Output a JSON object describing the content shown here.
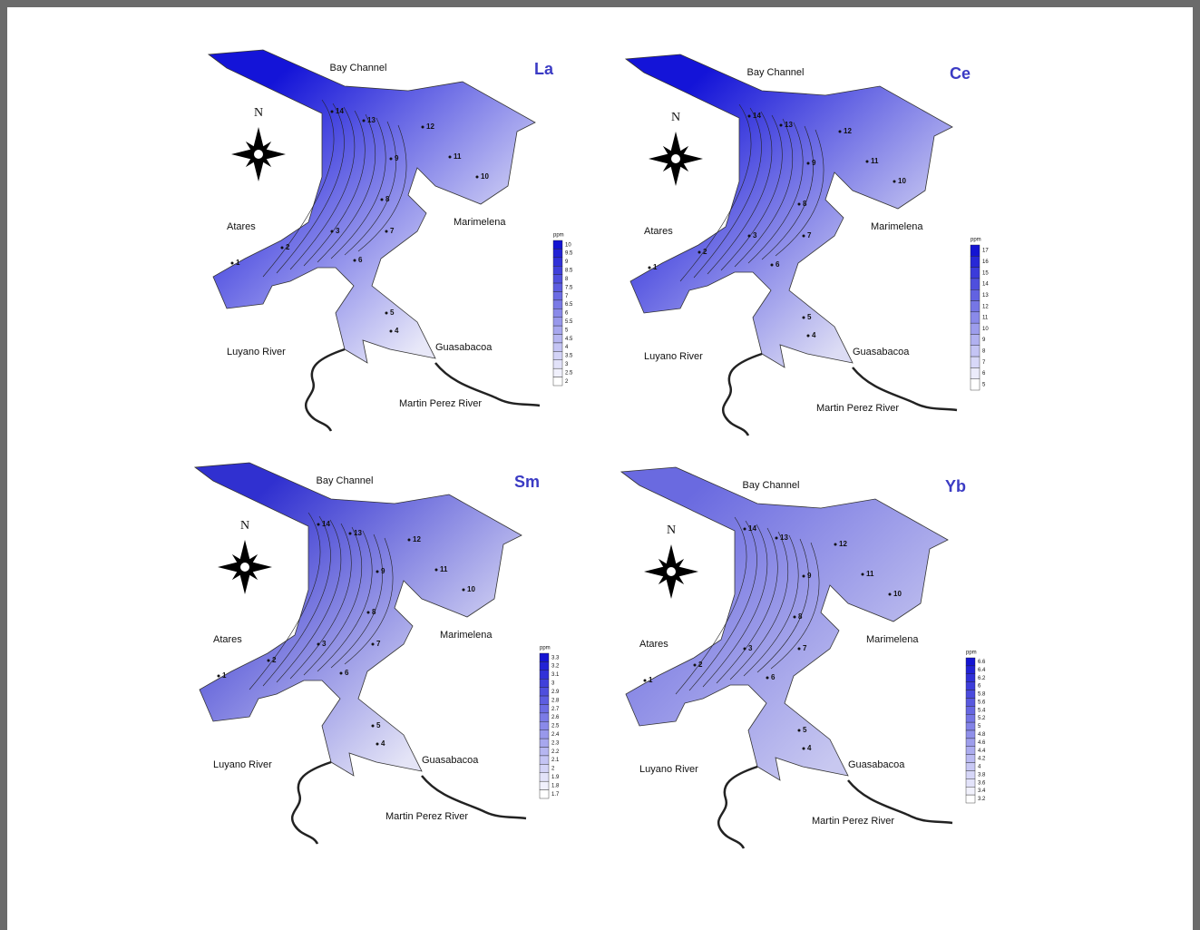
{
  "panels": [
    {
      "element": "La",
      "places": [
        "Bay Channel",
        "Atares",
        "Marimelena",
        "Guasabacoa",
        "Luyano River",
        "Martin Perez River"
      ],
      "north": "N",
      "legend_unit": "ppm",
      "legend_ticks": [
        "10",
        "9.5",
        "9",
        "8.5",
        "8",
        "7.5",
        "7",
        "6.5",
        "6",
        "5.5",
        "5",
        "4.5",
        "4",
        "3.5",
        "3",
        "2.5",
        "2"
      ],
      "stations": [
        "14",
        "13",
        "12",
        "11",
        "10",
        "9",
        "8",
        "7",
        "6",
        "5",
        "4",
        "3",
        "2",
        "1"
      ]
    },
    {
      "element": "Ce",
      "places": [
        "Bay Channel",
        "Atares",
        "Marimelena",
        "Guasabacoa",
        "Luyano River",
        "Martin Perez River"
      ],
      "north": "N",
      "legend_unit": "ppm",
      "legend_ticks": [
        "17",
        "16",
        "15",
        "14",
        "13",
        "12",
        "11",
        "10",
        "9",
        "8",
        "7",
        "6",
        "5"
      ],
      "stations": [
        "14",
        "13",
        "12",
        "11",
        "10",
        "9",
        "8",
        "7",
        "6",
        "5",
        "4",
        "3",
        "2",
        "1"
      ]
    },
    {
      "element": "Sm",
      "places": [
        "Bay Channel",
        "Atares",
        "Marimelena",
        "Guasabacoa",
        "Luyano River",
        "Martin Perez River"
      ],
      "north": "N",
      "legend_unit": "ppm",
      "legend_ticks": [
        "3.3",
        "3.2",
        "3.1",
        "3",
        "2.9",
        "2.8",
        "2.7",
        "2.6",
        "2.5",
        "2.4",
        "2.3",
        "2.2",
        "2.1",
        "2",
        "1.9",
        "1.8",
        "1.7"
      ],
      "stations": [
        "14",
        "13",
        "12",
        "11",
        "10",
        "9",
        "8",
        "7",
        "6",
        "5",
        "4",
        "3",
        "2",
        "1"
      ]
    },
    {
      "element": "Yb",
      "places": [
        "Bay Channel",
        "Atares",
        "Marimelena",
        "Guasabacoa",
        "Luyano River",
        "Martin Perez River"
      ],
      "north": "N",
      "legend_unit": "ppm",
      "legend_ticks": [
        "6.6",
        "6.4",
        "6.2",
        "6",
        "5.8",
        "5.6",
        "5.4",
        "5.2",
        "5",
        "4.8",
        "4.6",
        "4.4",
        "4.2",
        "4",
        "3.8",
        "3.6",
        "3.4",
        "3.2"
      ],
      "stations": [
        "14",
        "13",
        "12",
        "11",
        "10",
        "9",
        "8",
        "7",
        "6",
        "5",
        "4",
        "3",
        "2",
        "1"
      ]
    }
  ]
}
